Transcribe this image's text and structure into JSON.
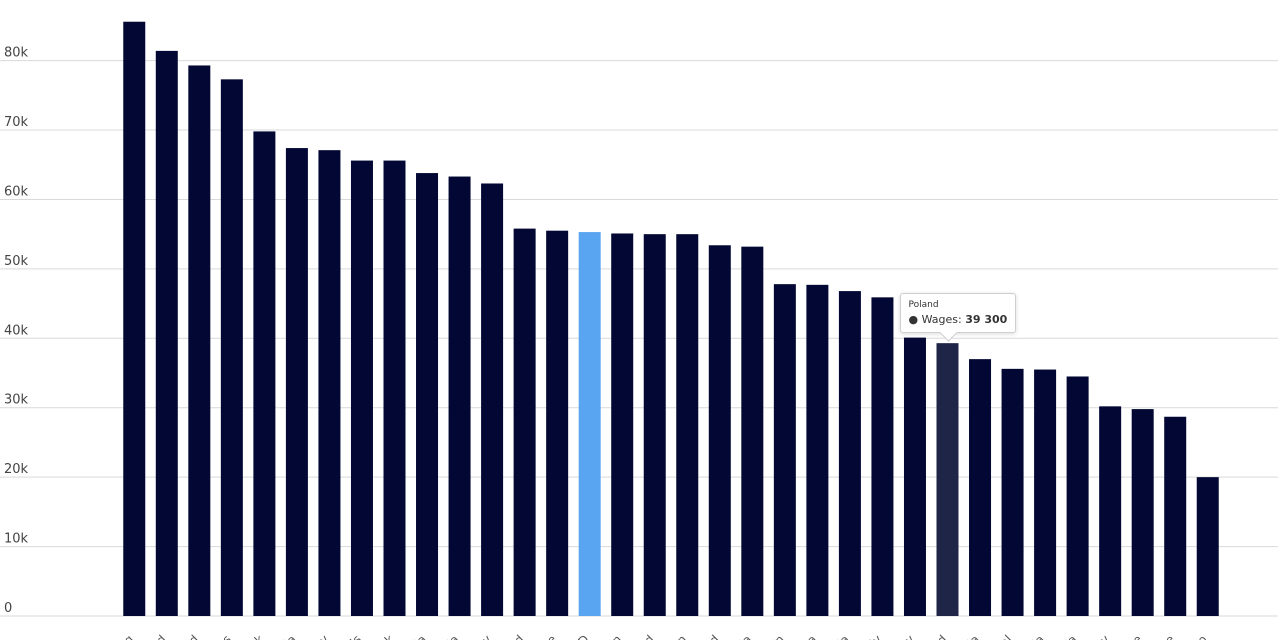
{
  "chart_data": {
    "type": "bar",
    "title": "",
    "xlabel": "",
    "ylabel": "",
    "ylim": [
      0,
      87000
    ],
    "yticks": [
      0,
      10000,
      20000,
      30000,
      40000,
      50000,
      60000,
      70000,
      80000
    ],
    "ytick_labels": [
      "0",
      "10k",
      "20k",
      "30k",
      "40k",
      "50k",
      "60k",
      "70k",
      "80k"
    ],
    "grid": true,
    "bar_color": "#020833",
    "highlight_color": "#5aa5f2",
    "hover_color": "#1f2547",
    "highlight_index": 14,
    "hover_index": 25,
    "categories": [
      "rg",
      "nd",
      "nd",
      "es",
      "rk",
      "ria",
      "ny",
      "ds",
      "rk",
      "ria",
      "da",
      "ny",
      "nd",
      "ce",
      "CD",
      "ain",
      "nd",
      "an",
      "nd",
      "nia",
      "ain",
      "ea",
      "nia",
      "ly",
      "ry",
      "nd",
      "nia",
      "al",
      "nia",
      "nia",
      "ry",
      "e",
      "ce",
      "ro"
    ],
    "series": [
      {
        "name": "Wages",
        "values": [
          85600,
          81400,
          79300,
          77300,
          69800,
          67400,
          67100,
          65600,
          65600,
          63800,
          63300,
          62300,
          55800,
          55500,
          55300,
          55100,
          55000,
          55000,
          53400,
          53200,
          47800,
          47700,
          46800,
          45900,
          40100,
          39300,
          37000,
          35600,
          35500,
          34500,
          30200,
          29800,
          28700,
          20000
        ]
      }
    ]
  },
  "tooltip": {
    "title": "Poland",
    "bullet": "●",
    "series_label": "Wages:",
    "value": "39 300"
  }
}
